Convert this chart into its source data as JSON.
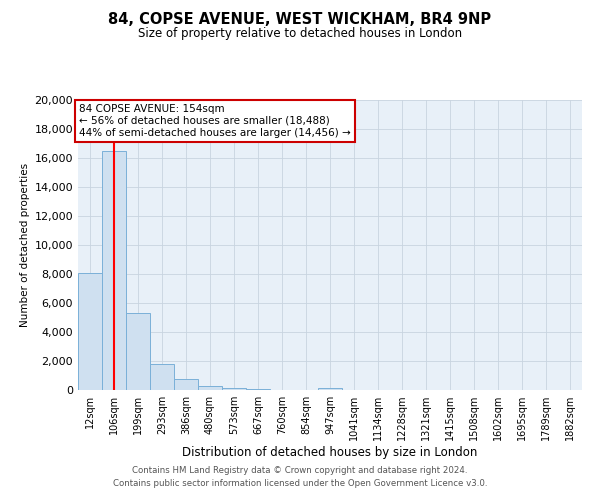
{
  "title_line1": "84, COPSE AVENUE, WEST WICKHAM, BR4 9NP",
  "title_line2": "Size of property relative to detached houses in London",
  "xlabel": "Distribution of detached houses by size in London",
  "ylabel": "Number of detached properties",
  "bar_labels": [
    "12sqm",
    "106sqm",
    "199sqm",
    "293sqm",
    "386sqm",
    "480sqm",
    "573sqm",
    "667sqm",
    "760sqm",
    "854sqm",
    "947sqm",
    "1041sqm",
    "1134sqm",
    "1228sqm",
    "1321sqm",
    "1415sqm",
    "1508sqm",
    "1602sqm",
    "1695sqm",
    "1789sqm",
    "1882sqm"
  ],
  "bar_values": [
    8100,
    16500,
    5300,
    1800,
    750,
    300,
    150,
    100,
    0,
    0,
    150,
    0,
    0,
    0,
    0,
    0,
    0,
    0,
    0,
    0,
    0
  ],
  "bar_color": "#cfe0f0",
  "bar_edge_color": "#7ab0d8",
  "red_line_x": 1.48,
  "annotation_text": "84 COPSE AVENUE: 154sqm\n← 56% of detached houses are smaller (18,488)\n44% of semi-detached houses are larger (14,456) →",
  "annotation_box_color": "#ffffff",
  "annotation_box_edge": "#cc0000",
  "ylim": [
    0,
    20000
  ],
  "yticks": [
    0,
    2000,
    4000,
    6000,
    8000,
    10000,
    12000,
    14000,
    16000,
    18000,
    20000
  ],
  "grid_color": "#c8d4e0",
  "background_color": "#e8f0f8",
  "footer_line1": "Contains HM Land Registry data © Crown copyright and database right 2024.",
  "footer_line2": "Contains public sector information licensed under the Open Government Licence v3.0."
}
